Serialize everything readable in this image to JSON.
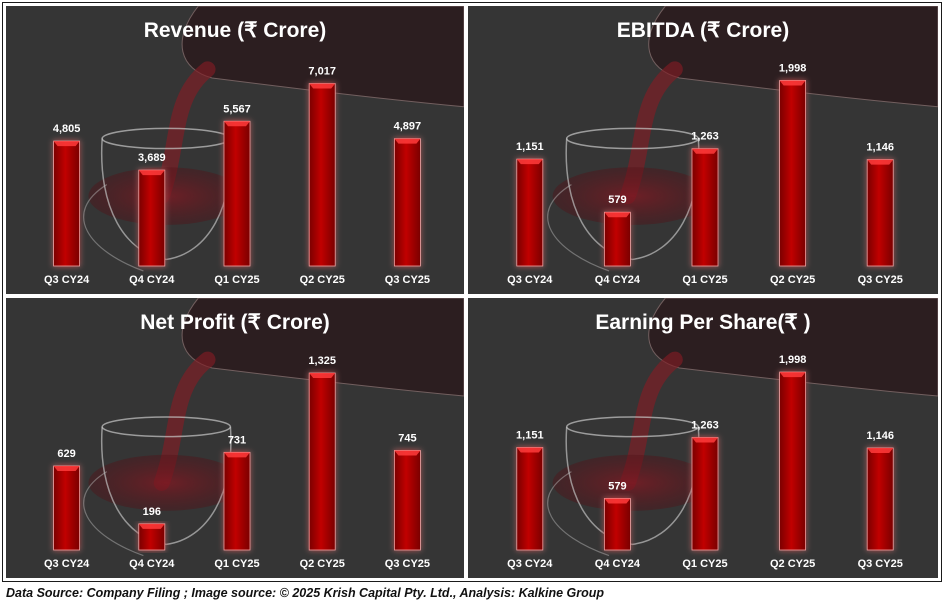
{
  "colors": {
    "panel_bg": "#353535",
    "bar_fill": "#c10000",
    "bar_dark": "#7a0000",
    "bar_light": "#ff3b3b",
    "text": "#ffffff"
  },
  "chart_data": [
    {
      "type": "bar",
      "title": "Revenue (₹ Crore)",
      "categories": [
        "Q3 CY24",
        "Q4 CY24",
        "Q1 CY25",
        "Q2 CY25",
        "Q3 CY25"
      ],
      "values": [
        4805,
        3689,
        5567,
        7017,
        4897
      ],
      "value_labels": [
        "4,805",
        "3,689",
        "5,567",
        "7,017",
        "4,897"
      ],
      "xlabel": "",
      "ylabel": "",
      "ylim": [
        0,
        7500
      ],
      "grid": false
    },
    {
      "type": "bar",
      "title": "EBITDA (₹ Crore)",
      "categories": [
        "Q3 CY24",
        "Q4 CY24",
        "Q1 CY25",
        "Q2 CY25",
        "Q3 CY25"
      ],
      "values": [
        1151,
        579,
        1263,
        1998,
        1146
      ],
      "value_labels": [
        "1,151",
        "579",
        "1,263",
        "1,998",
        "1,146"
      ],
      "xlabel": "",
      "ylabel": "",
      "ylim": [
        0,
        2100
      ],
      "grid": false
    },
    {
      "type": "bar",
      "title": "Net Profit (₹ Crore)",
      "categories": [
        "Q3 CY24",
        "Q4 CY24",
        "Q1 CY25",
        "Q2 CY25",
        "Q3 CY25"
      ],
      "values": [
        629,
        196,
        731,
        1325,
        745
      ],
      "value_labels": [
        "629",
        "196",
        "731",
        "1,325",
        "745"
      ],
      "xlabel": "",
      "ylabel": "",
      "ylim": [
        0,
        1400
      ],
      "grid": false
    },
    {
      "type": "bar",
      "title": "Earning Per Share(₹ )",
      "categories": [
        "Q3 CY24",
        "Q4 CY24",
        "Q1 CY25",
        "Q2 CY25",
        "Q3 CY25"
      ],
      "values": [
        1151,
        579,
        1263,
        1998,
        1146
      ],
      "value_labels": [
        "1,151",
        "579",
        "1,263",
        "1,998",
        "1,146"
      ],
      "xlabel": "",
      "ylabel": "",
      "ylim": [
        0,
        2100
      ],
      "grid": false
    }
  ],
  "footer": {
    "text": "Data Source: Company Filing ; Image source: © 2025 Krish Capital Pty. Ltd., Analysis: Kalkine Group"
  }
}
